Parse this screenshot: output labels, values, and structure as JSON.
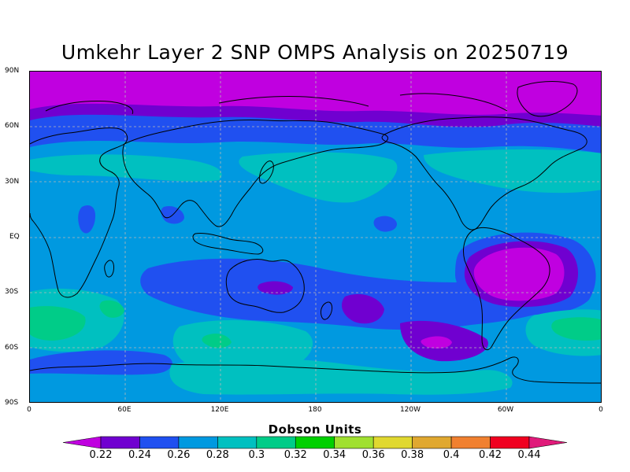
{
  "title": "Umkehr Layer 2 SNP OMPS Analysis on 20250719",
  "colorbar": {
    "title": "Dobson Units",
    "labels": [
      "0.22",
      "0.24",
      "0.26",
      "0.28",
      "0.3",
      "0.32",
      "0.34",
      "0.36",
      "0.38",
      "0.4",
      "0.42",
      "0.44"
    ],
    "colors": [
      "#c000e0",
      "#7000d0",
      "#2050f0",
      "#0099e0",
      "#00c0c0",
      "#00cc88",
      "#00d000",
      "#a0e030",
      "#e0d830",
      "#e0a830",
      "#f08030",
      "#f00020",
      "#e01a7a"
    ]
  },
  "axes": {
    "lat_labels": [
      "90N",
      "60N",
      "30N",
      "EQ",
      "30S",
      "60S",
      "90S"
    ],
    "lon_labels": [
      "0",
      "60E",
      "120E",
      "180",
      "120W",
      "60W",
      "0"
    ],
    "lat_range": [
      -90,
      90
    ],
    "lon_range": [
      0,
      360
    ],
    "grid": true
  },
  "field_regions": [
    {
      "color": "#0099e0",
      "note": "background"
    },
    {
      "color": "#00c0c0"
    },
    {
      "color": "#00cc88"
    },
    {
      "color": "#2050f0"
    },
    {
      "color": "#7000d0"
    },
    {
      "color": "#c000e0"
    }
  ]
}
